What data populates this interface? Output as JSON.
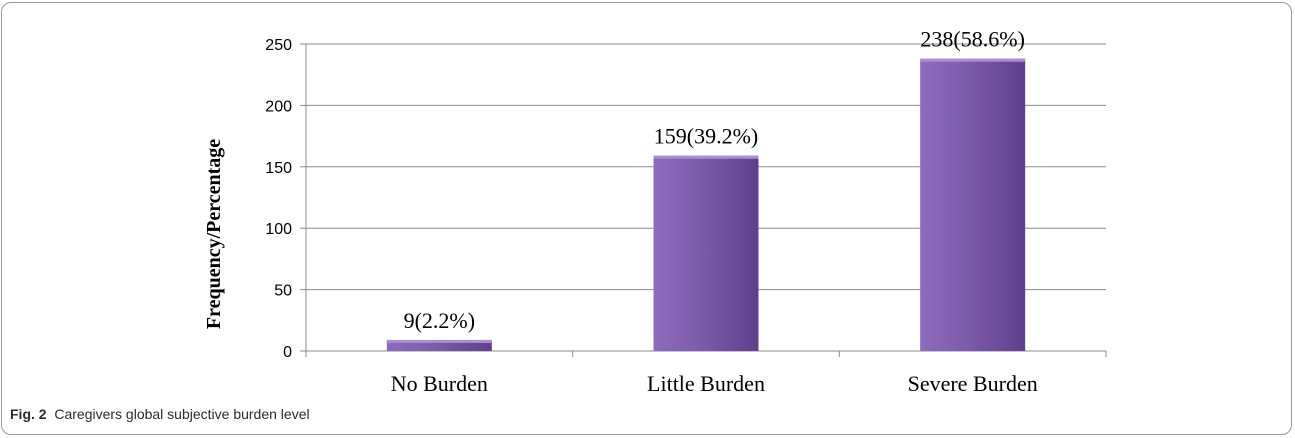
{
  "chart_data": {
    "type": "bar",
    "categories": [
      "No Burden",
      "Little Burden",
      "Severe Burden"
    ],
    "values": [
      9,
      159,
      238
    ],
    "data_labels": [
      "9(2.2%)",
      "159(39.2%)",
      "238(58.6%)"
    ],
    "title": "",
    "xlabel": "",
    "ylabel": "Frequency/Percentage",
    "ylim": [
      0,
      250
    ],
    "yticks": [
      0,
      50,
      100,
      150,
      200,
      250
    ],
    "grid": true,
    "bar_color": "#7b5aa6"
  },
  "caption": {
    "fig_label": "Fig. 2",
    "text": "Caregivers global subjective burden level"
  }
}
